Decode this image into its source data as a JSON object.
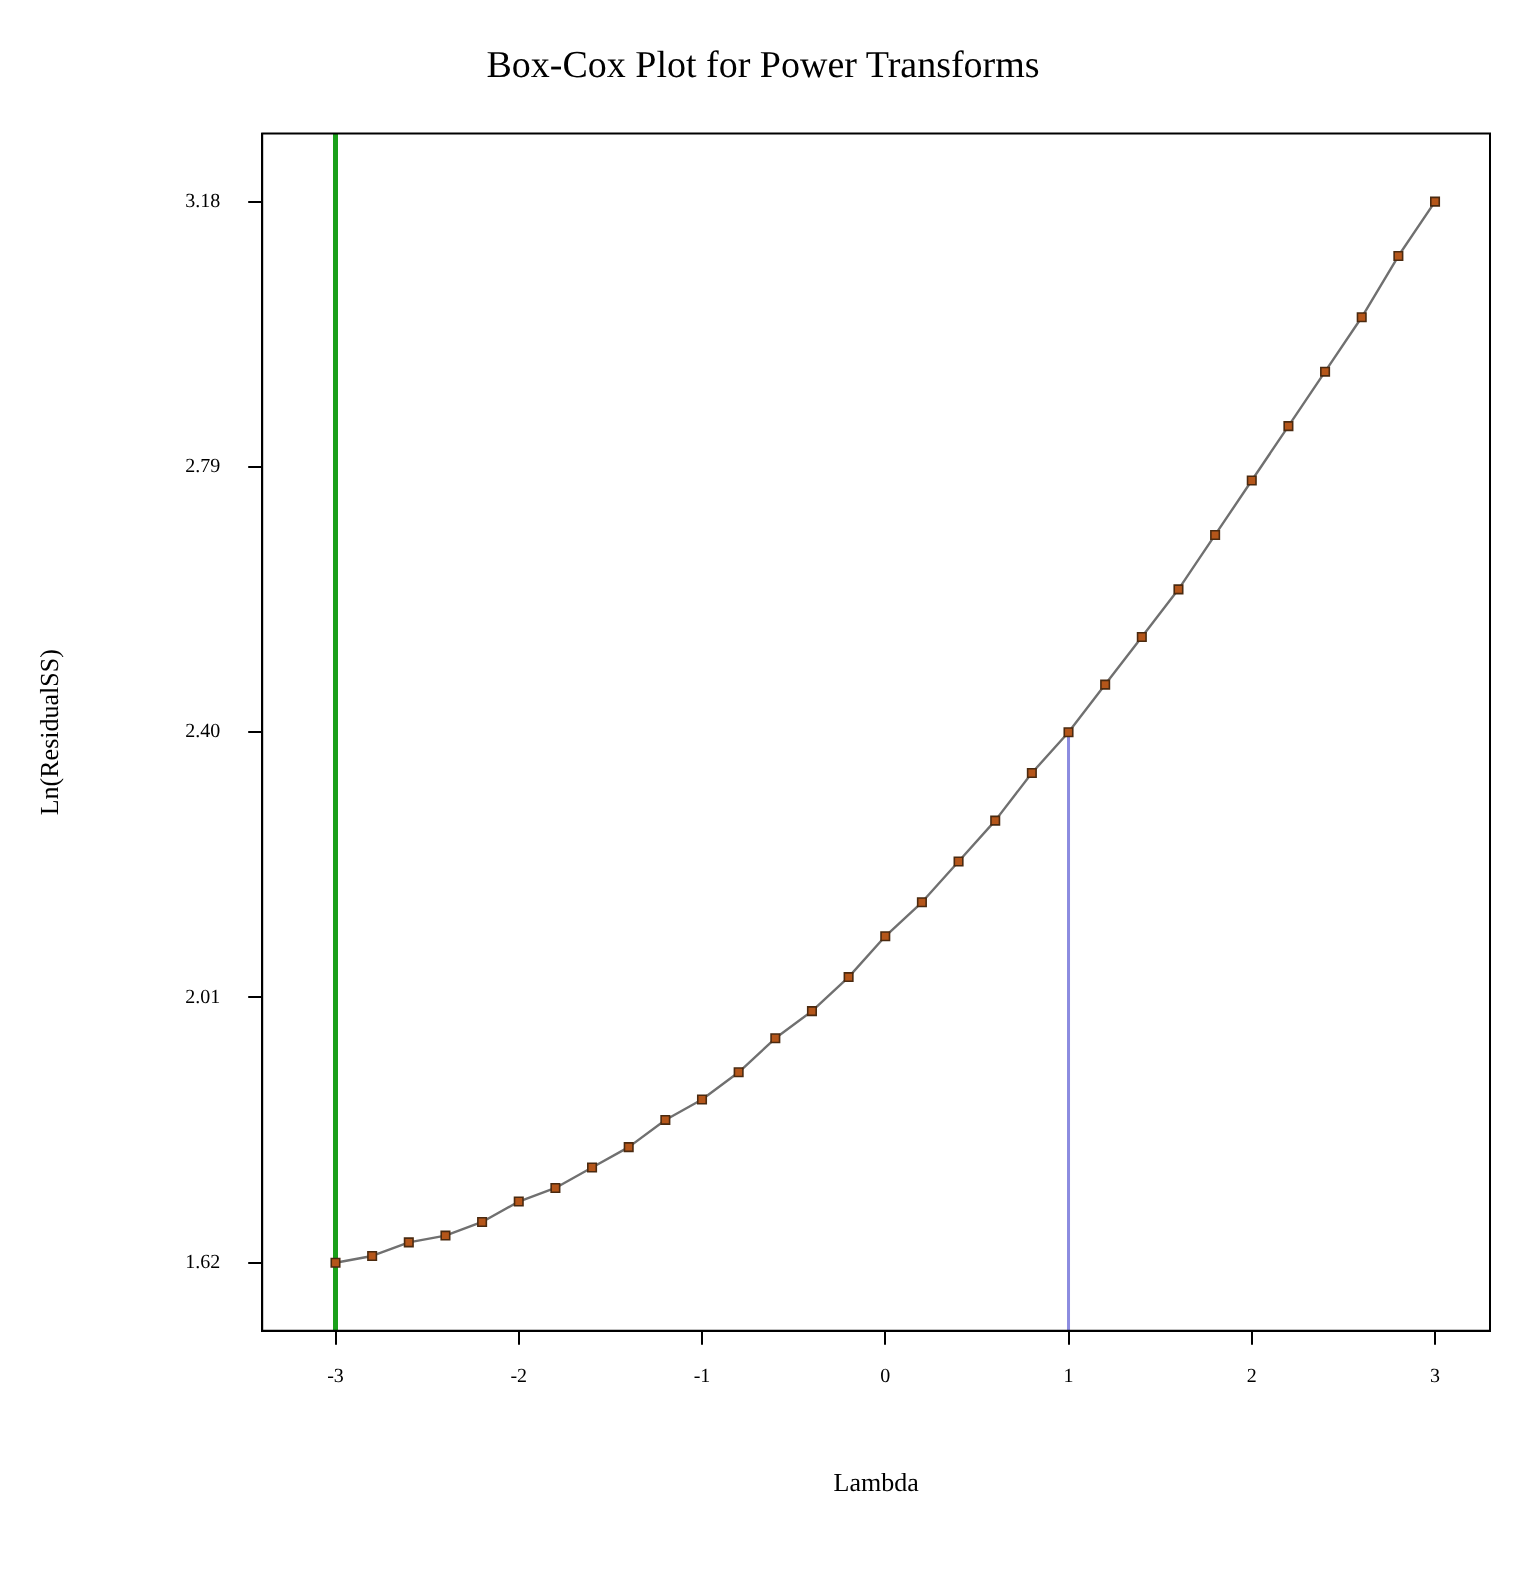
{
  "chart_data": {
    "type": "line",
    "title": "Box-Cox Plot for Power Transforms",
    "xlabel": "Lambda",
    "ylabel": "Ln(ResidualSS)",
    "x": [
      -3,
      -2.8,
      -2.6,
      -2.4,
      -2.2,
      -2,
      -1.8,
      -1.6,
      -1.4,
      -1.2,
      -1,
      -0.8,
      -0.6,
      -0.4,
      -0.2,
      0,
      0.2,
      0.4,
      0.6,
      0.8,
      1,
      1.2,
      1.4,
      1.6,
      1.8,
      2,
      2.2,
      2.4,
      2.6,
      2.8,
      3
    ],
    "series": [
      {
        "color": "#b5561a",
        "values": [
          1.62,
          1.63,
          1.65,
          1.66,
          1.68,
          1.71,
          1.73,
          1.76,
          1.79,
          1.83,
          1.86,
          1.9,
          1.95,
          1.99,
          2.04,
          2.1,
          2.15,
          2.21,
          2.27,
          2.34,
          2.4,
          2.47,
          2.54,
          2.61,
          2.69,
          2.77,
          2.85,
          2.93,
          3.01,
          3.1,
          3.18
        ]
      }
    ],
    "xlim": [
      -3.4,
      3.3
    ],
    "ylim": [
      1.52,
      3.28
    ],
    "xticks": [
      -3,
      -2,
      -1,
      0,
      1,
      2,
      3
    ],
    "yticks": [
      1.62,
      2.01,
      {
        "value": 2.4,
        "label": "2.40"
      },
      2.79,
      3.18
    ],
    "ref_lines": [
      {
        "axis": "x",
        "value": -3,
        "color": "#1aa01a"
      },
      {
        "axis": "x",
        "value": 1,
        "color": "#8c8ce0"
      }
    ],
    "grid": false,
    "legend": false,
    "marker": "square",
    "line_style": "solid"
  }
}
